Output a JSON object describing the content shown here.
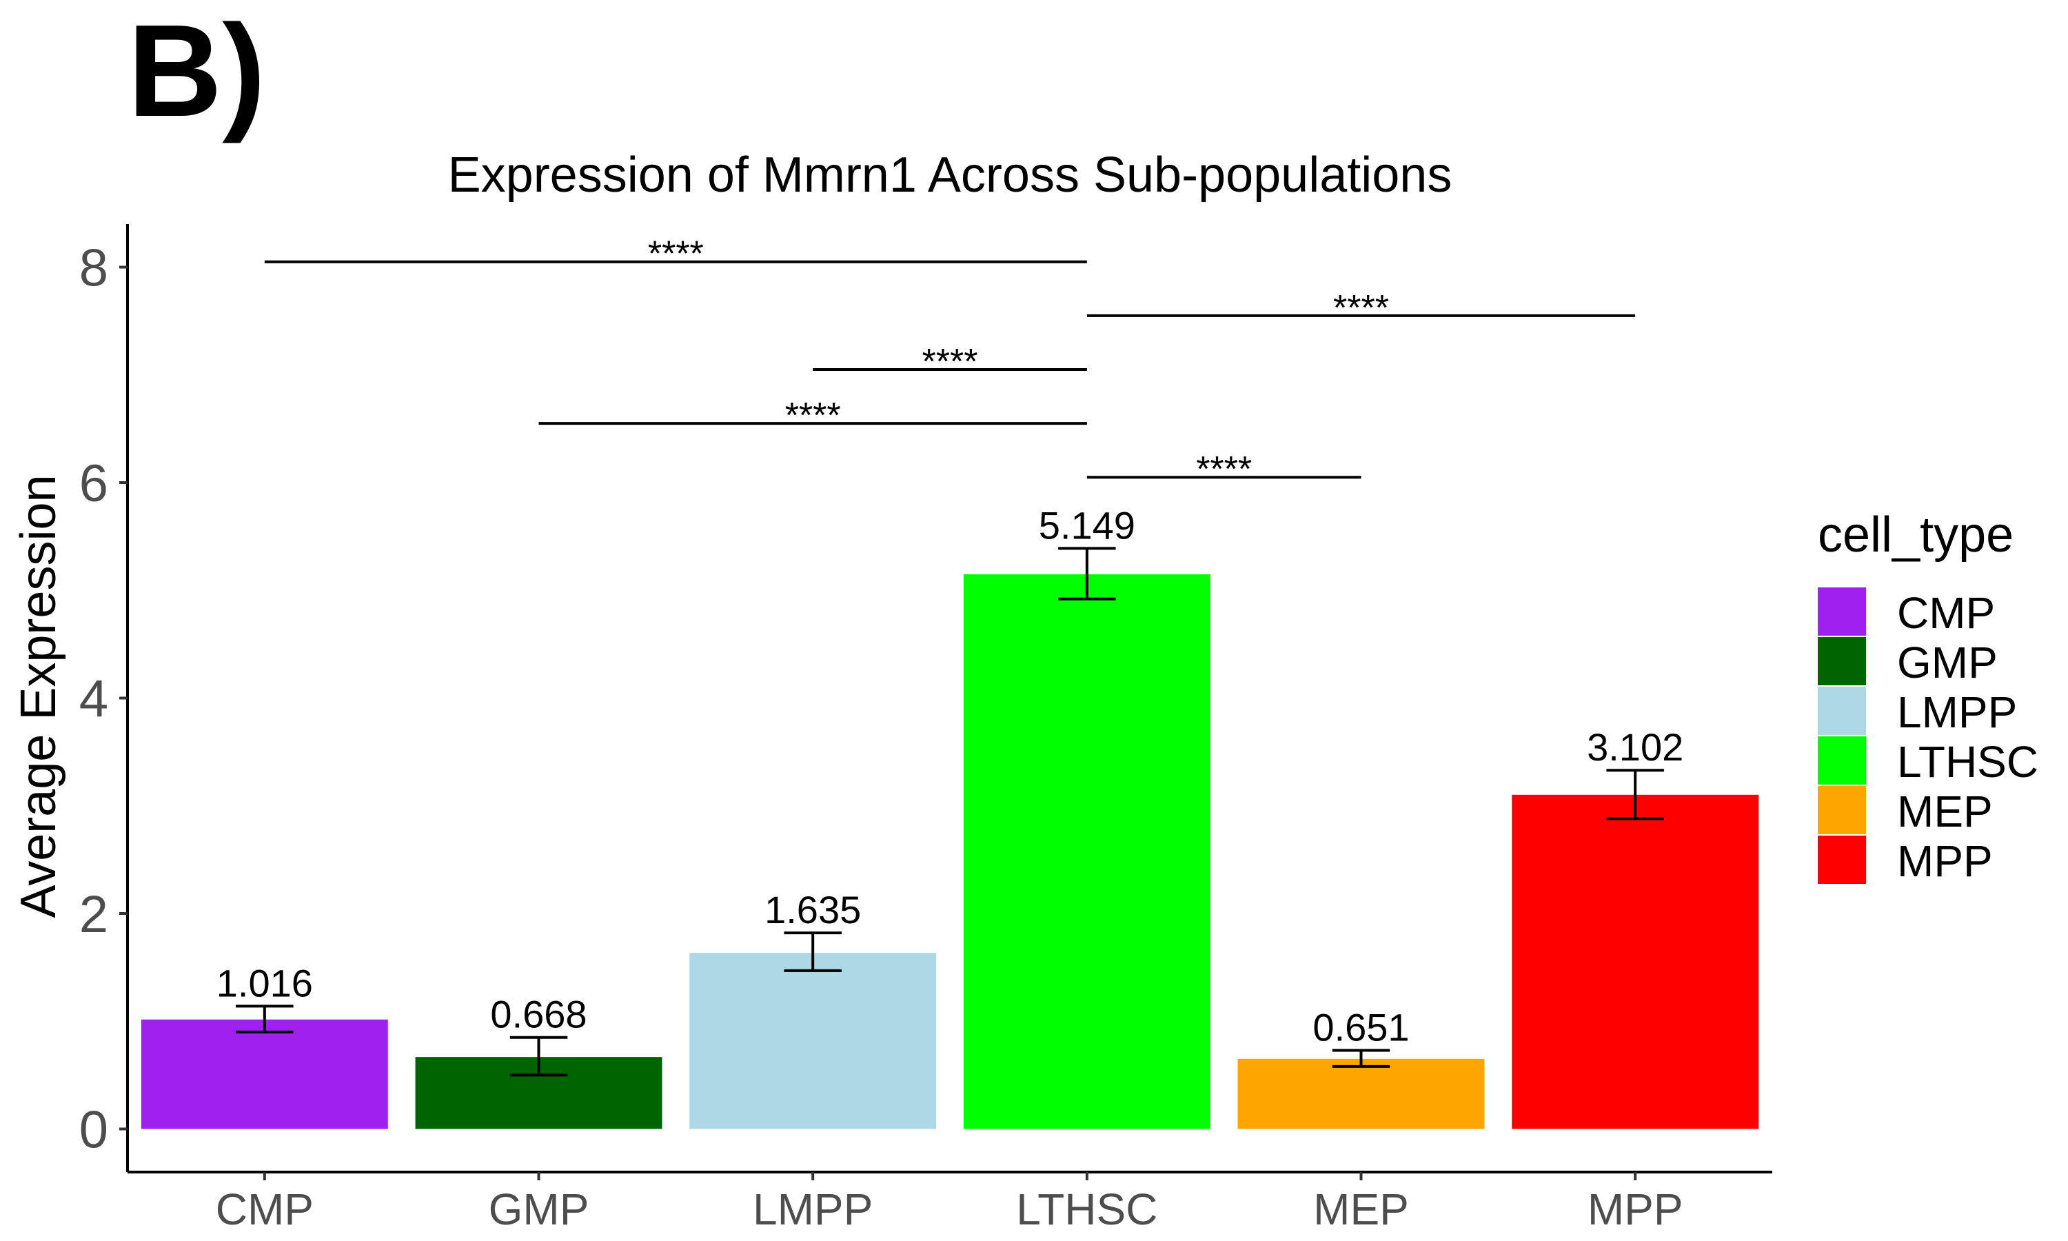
{
  "panel_label": "B)",
  "chart_data": {
    "type": "bar",
    "title": "Expression of Mmrn1 Across Sub-populations",
    "xlabel": "",
    "ylabel": "Average Expression",
    "ylim": [
      -0.4,
      8.4
    ],
    "yticks": [
      0,
      2,
      4,
      6,
      8
    ],
    "grid": false,
    "categories": [
      "CMP",
      "GMP",
      "LMPP",
      "LTHSC",
      "MEP",
      "MPP"
    ],
    "values": [
      1.016,
      0.668,
      1.635,
      5.149,
      0.651,
      3.102
    ],
    "value_labels": [
      "1.016",
      "0.668",
      "1.635",
      "5.149",
      "0.651",
      "3.102"
    ],
    "error_low": [
      0.9,
      0.5,
      1.47,
      4.92,
      0.58,
      2.88
    ],
    "error_high": [
      1.14,
      0.85,
      1.82,
      5.39,
      0.73,
      3.33
    ],
    "colors": [
      "#a020f0",
      "#006400",
      "#add8e6",
      "#00ff00",
      "#ffa500",
      "#ff0000"
    ],
    "legend": {
      "title": "cell_type",
      "position": "right",
      "entries": [
        "CMP",
        "GMP",
        "LMPP",
        "LTHSC",
        "MEP",
        "MPP"
      ]
    },
    "significance": [
      {
        "from": "CMP",
        "to": "LTHSC",
        "y": 8.05,
        "label": "****"
      },
      {
        "from": "LTHSC",
        "to": "MPP",
        "y": 7.55,
        "label": "****"
      },
      {
        "from": "LMPP",
        "to": "LTHSC",
        "y": 7.05,
        "label": "****"
      },
      {
        "from": "GMP",
        "to": "LTHSC",
        "y": 6.55,
        "label": "****"
      },
      {
        "from": "LTHSC",
        "to": "MEP",
        "y": 6.05,
        "label": "****"
      }
    ]
  }
}
